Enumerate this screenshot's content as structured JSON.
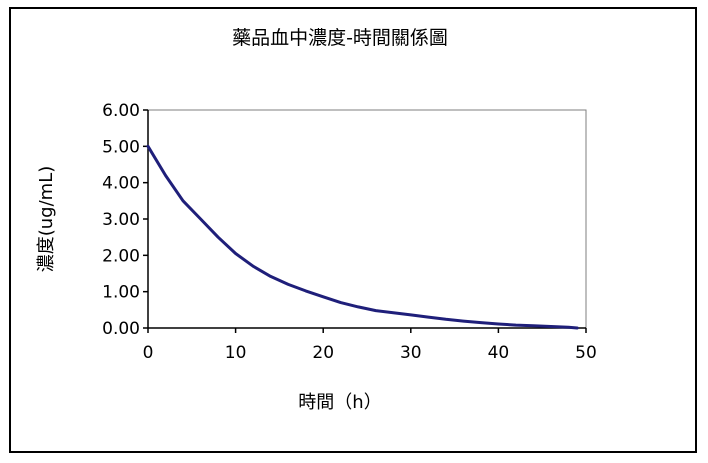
{
  "chart_data": {
    "type": "line",
    "title": "藥品血中濃度-時間關係圖",
    "xlabel": "時間（h）",
    "ylabel": "濃度(ug/mL)",
    "xlim": [
      0,
      50
    ],
    "ylim": [
      0,
      6
    ],
    "x_ticks": [
      "0",
      "10",
      "20",
      "30",
      "40",
      "50"
    ],
    "y_ticks": [
      "0.00",
      "1.00",
      "2.00",
      "3.00",
      "4.00",
      "5.00",
      "6.00"
    ],
    "grid": false,
    "legend": "none",
    "line_color": "#1f1f7a",
    "series": [
      {
        "x": [
          0,
          2,
          4,
          6,
          8,
          10,
          12,
          14,
          16,
          18,
          20,
          22,
          24,
          26,
          28,
          30,
          32,
          34,
          36,
          38,
          40,
          42,
          44,
          46,
          48,
          49
        ],
        "y": [
          5.0,
          4.2,
          3.5,
          3.0,
          2.5,
          2.05,
          1.7,
          1.42,
          1.2,
          1.02,
          0.86,
          0.7,
          0.58,
          0.48,
          0.42,
          0.36,
          0.3,
          0.24,
          0.19,
          0.15,
          0.11,
          0.08,
          0.06,
          0.04,
          0.02,
          0.0
        ]
      }
    ]
  }
}
